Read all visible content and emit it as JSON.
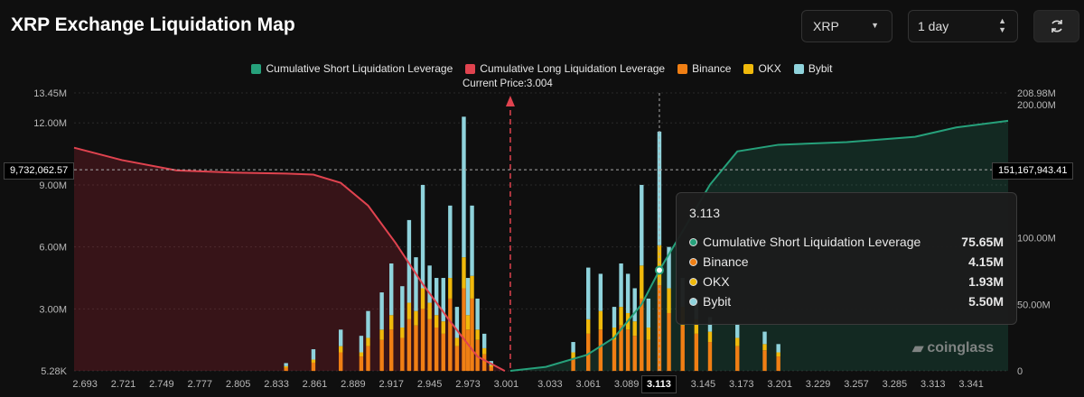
{
  "header": {
    "title": "XRP Exchange Liquidation Map",
    "asset_select": "XRP",
    "period_select": "1 day",
    "refresh_icon": "refresh-icon"
  },
  "legend": [
    {
      "label": "Cumulative Short Liquidation Leverage",
      "color": "#26a17b"
    },
    {
      "label": "Cumulative Long Liquidation Leverage",
      "color": "#e0434f"
    },
    {
      "label": "Binance",
      "color": "#f07f14"
    },
    {
      "label": "OKX",
      "color": "#f0b90b"
    },
    {
      "label": "Bybit",
      "color": "#8fd3dc"
    }
  ],
  "current_price_label": "Current Price:3.004",
  "crosshair": {
    "left_value": "9,732,062.57",
    "right_value": "151,167,943.41",
    "x_value": "3.113"
  },
  "tooltip": {
    "title": "3.113",
    "rows": [
      {
        "label": "Cumulative Short Liquidation Leverage",
        "value": "75.65M",
        "color": "#26a17b"
      },
      {
        "label": "Binance",
        "value": "4.15M",
        "color": "#f07f14"
      },
      {
        "label": "OKX",
        "value": "1.93M",
        "color": "#f0b90b"
      },
      {
        "label": "Bybit",
        "value": "5.50M",
        "color": "#8fd3dc"
      }
    ]
  },
  "watermark": "coinglass",
  "chart_data": {
    "type": "bar",
    "title": "XRP Exchange Liquidation Map",
    "x_ticks": [
      "2.693",
      "2.721",
      "2.749",
      "2.777",
      "2.805",
      "2.833",
      "2.861",
      "2.889",
      "2.917",
      "2.945",
      "2.973",
      "3.001",
      "3.033",
      "3.061",
      "3.089",
      "3.113",
      "3.145",
      "3.173",
      "3.201",
      "3.229",
      "3.257",
      "3.285",
      "3.313",
      "3.341"
    ],
    "x_range": [
      2.685,
      3.368
    ],
    "y_left": {
      "ticks": [
        "5.28K",
        "3.00M",
        "6.00M",
        "9.00M",
        "12.00M",
        "13.45M"
      ],
      "tick_values": [
        5280,
        3000000,
        6000000,
        9000000,
        12000000,
        13450000
      ],
      "ylim": [
        5280,
        13450000
      ]
    },
    "y_right": {
      "ticks": [
        "0",
        "50.00M",
        "100.00M",
        "200.00M",
        "208.98M"
      ],
      "tick_values": [
        0,
        50000000,
        100000000,
        200000000,
        208980000
      ],
      "ylim": [
        0,
        208980000
      ]
    },
    "current_price": 3.004,
    "grid": true,
    "legend_position": "top-center",
    "cumulative_long": {
      "x": [
        2.685,
        2.72,
        2.76,
        2.8,
        2.84,
        2.86,
        2.88,
        2.9,
        2.92,
        2.94,
        2.96,
        2.98,
        3.0
      ],
      "values": [
        10800000,
        10200000,
        9700000,
        9600000,
        9550000,
        9500000,
        9100000,
        8000000,
        6200000,
        4200000,
        2400000,
        700000,
        0
      ]
    },
    "cumulative_short": {
      "x": [
        3.004,
        3.03,
        3.06,
        3.08,
        3.1,
        3.113,
        3.13,
        3.15,
        3.17,
        3.2,
        3.25,
        3.3,
        3.33,
        3.368
      ],
      "values": [
        0,
        3000000,
        12000000,
        25000000,
        50000000,
        75650000,
        105000000,
        140000000,
        165000000,
        170000000,
        172000000,
        176000000,
        183000000,
        188000000
      ]
    },
    "bars_left": {
      "x": [
        2.84,
        2.86,
        2.88,
        2.895,
        2.9,
        2.91,
        2.917,
        2.925,
        2.93,
        2.935,
        2.94,
        2.945,
        2.95,
        2.955,
        2.96,
        2.965,
        2.97,
        2.973,
        2.976,
        2.98,
        2.985,
        2.99
      ],
      "binance": [
        150000,
        400000,
        900000,
        700000,
        1200000,
        1500000,
        2000000,
        1600000,
        2500000,
        2200000,
        3000000,
        2500000,
        2100000,
        1800000,
        3500000,
        1200000,
        4000000,
        2000000,
        3500000,
        1500000,
        800000,
        200000
      ],
      "okx": [
        80000,
        150000,
        300000,
        200000,
        400000,
        500000,
        700000,
        500000,
        800000,
        700000,
        1000000,
        800000,
        600000,
        600000,
        1000000,
        400000,
        1500000,
        700000,
        1100000,
        500000,
        300000,
        80000
      ],
      "bybit": [
        150000,
        500000,
        800000,
        800000,
        1300000,
        1800000,
        2500000,
        2000000,
        4000000,
        2600000,
        5000000,
        1800000,
        1800000,
        2100000,
        3500000,
        1500000,
        6800000,
        1800000,
        3400000,
        1500000,
        700000,
        200000
      ]
    },
    "bars_right": {
      "x": [
        3.05,
        3.061,
        3.07,
        3.08,
        3.085,
        3.09,
        3.095,
        3.1,
        3.105,
        3.113,
        3.12,
        3.13,
        3.14,
        3.15,
        3.17,
        3.19,
        3.2
      ],
      "binance": [
        600000,
        1800000,
        2000000,
        1500000,
        2200000,
        2000000,
        1700000,
        3500000,
        1500000,
        4150000,
        2800000,
        2200000,
        1800000,
        1400000,
        1200000,
        1000000,
        700000
      ],
      "okx": [
        300000,
        700000,
        900000,
        600000,
        900000,
        800000,
        700000,
        1600000,
        600000,
        1930000,
        1200000,
        900000,
        700000,
        500000,
        400000,
        300000,
        200000
      ],
      "bybit": [
        500000,
        2500000,
        1800000,
        1000000,
        2100000,
        1900000,
        1600000,
        3900000,
        1400000,
        5500000,
        2000000,
        1400000,
        1000000,
        700000,
        700000,
        600000,
        400000
      ]
    }
  }
}
